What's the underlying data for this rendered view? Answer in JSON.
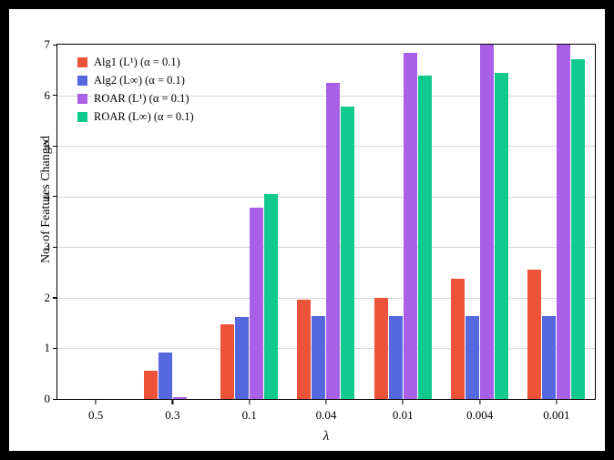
{
  "chart_data": {
    "type": "bar",
    "title": "",
    "xlabel": "λ",
    "ylabel": "No. of Features Changed",
    "ylim": [
      0,
      7
    ],
    "yticks": [
      0,
      1,
      2,
      3,
      4,
      5,
      6,
      7
    ],
    "grid": "horizontal",
    "legend_position": "upper-left",
    "categories": [
      "0.5",
      "0.3",
      "0.1",
      "0.04",
      "0.01",
      "0.004",
      "0.001"
    ],
    "series": [
      {
        "name": "Alg1 (L¹) (α = 0.1)",
        "color": "#ed5338",
        "values": [
          0,
          0.55,
          1.48,
          1.97,
          2.0,
          2.38,
          2.55
        ]
      },
      {
        "name": "Alg2 (L∞) (α = 0.1)",
        "color": "#5668dd",
        "values": [
          0,
          0.92,
          1.62,
          1.63,
          1.63,
          1.63,
          1.63
        ]
      },
      {
        "name": "ROAR (L¹) (α = 0.1)",
        "color": "#a95fe8",
        "values": [
          0,
          0.03,
          3.78,
          6.25,
          6.83,
          7.0,
          7.0
        ]
      },
      {
        "name": "ROAR (L∞) (α = 0.1)",
        "color": "#10c98d",
        "values": [
          0,
          0,
          4.05,
          5.77,
          6.38,
          6.45,
          6.72
        ]
      }
    ]
  }
}
